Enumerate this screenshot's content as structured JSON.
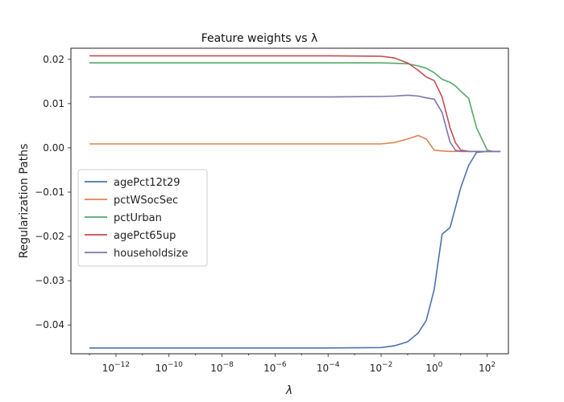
{
  "chart_data": {
    "type": "line",
    "title": "Feature weights vs  λ",
    "xlabel": "λ",
    "ylabel": "Regularization Paths",
    "x_scale": "log10",
    "xlim_log10": [
      -13.7,
      2.8
    ],
    "ylim": [
      -0.0465,
      0.0225
    ],
    "x_ticks": [
      {
        "v": -12,
        "base": "10",
        "exp": "−12"
      },
      {
        "v": -10,
        "base": "10",
        "exp": "−10"
      },
      {
        "v": -8,
        "base": "10",
        "exp": "−8"
      },
      {
        "v": -6,
        "base": "10",
        "exp": "−6"
      },
      {
        "v": -4,
        "base": "10",
        "exp": "−4"
      },
      {
        "v": -2,
        "base": "10",
        "exp": "−2"
      },
      {
        "v": 0,
        "base": "10",
        "exp": "0"
      },
      {
        "v": 2,
        "base": "10",
        "exp": "2"
      }
    ],
    "y_ticks": [
      {
        "v": 0.02,
        "label": "0.02"
      },
      {
        "v": 0.01,
        "label": "0.01"
      },
      {
        "v": 0.0,
        "label": "0.00"
      },
      {
        "v": -0.01,
        "label": "−0.01"
      },
      {
        "v": -0.02,
        "label": "−0.02"
      },
      {
        "v": -0.03,
        "label": "−0.03"
      },
      {
        "v": -0.04,
        "label": "−0.04"
      }
    ],
    "grid": false,
    "legend": "center-left",
    "x_log10": [
      -13,
      -4,
      -2,
      -1.5,
      -1,
      -0.6,
      -0.3,
      0,
      0.3,
      0.6,
      0.8,
      1,
      1.3,
      1.6,
      2,
      2.2,
      2.5
    ],
    "series": [
      {
        "name": "agePct12t29",
        "color": "#4c72b0",
        "values": [
          -0.0452,
          -0.0452,
          -0.0451,
          -0.0447,
          -0.0438,
          -0.0418,
          -0.039,
          -0.032,
          -0.0195,
          -0.018,
          -0.0135,
          -0.009,
          -0.004,
          -0.001,
          -0.0008,
          -0.0008,
          -0.0008
        ]
      },
      {
        "name": "pctWSocSec",
        "color": "#dd8452",
        "values": [
          0.0009,
          0.0009,
          0.0009,
          0.0012,
          0.002,
          0.0028,
          0.002,
          -0.0005,
          -0.0007,
          -0.0008,
          -0.0008,
          -0.0008,
          -0.0008,
          -0.0008,
          -0.0008,
          -0.0008,
          -0.0008
        ]
      },
      {
        "name": "pctUrban",
        "color": "#55a868",
        "values": [
          0.0192,
          0.0192,
          0.0192,
          0.0191,
          0.019,
          0.0185,
          0.018,
          0.017,
          0.0155,
          0.0148,
          0.014,
          0.0128,
          0.0112,
          0.0045,
          -0.0005,
          -0.0008,
          -0.0008
        ]
      },
      {
        "name": "agePct65up",
        "color": "#c44e52",
        "values": [
          0.0208,
          0.0208,
          0.0207,
          0.0203,
          0.0192,
          0.0175,
          0.016,
          0.0152,
          0.0115,
          0.0045,
          0.0012,
          -0.0005,
          -0.0008,
          -0.0008,
          -0.0008,
          -0.0008,
          -0.0008
        ]
      },
      {
        "name": "householdsize",
        "color": "#8172b3",
        "values": [
          0.0115,
          0.0115,
          0.0116,
          0.0117,
          0.0119,
          0.0117,
          0.0113,
          0.011,
          0.008,
          0.0013,
          -0.0005,
          -0.0008,
          -0.0008,
          -0.0008,
          -0.0008,
          -0.0008,
          -0.0008
        ]
      }
    ]
  }
}
